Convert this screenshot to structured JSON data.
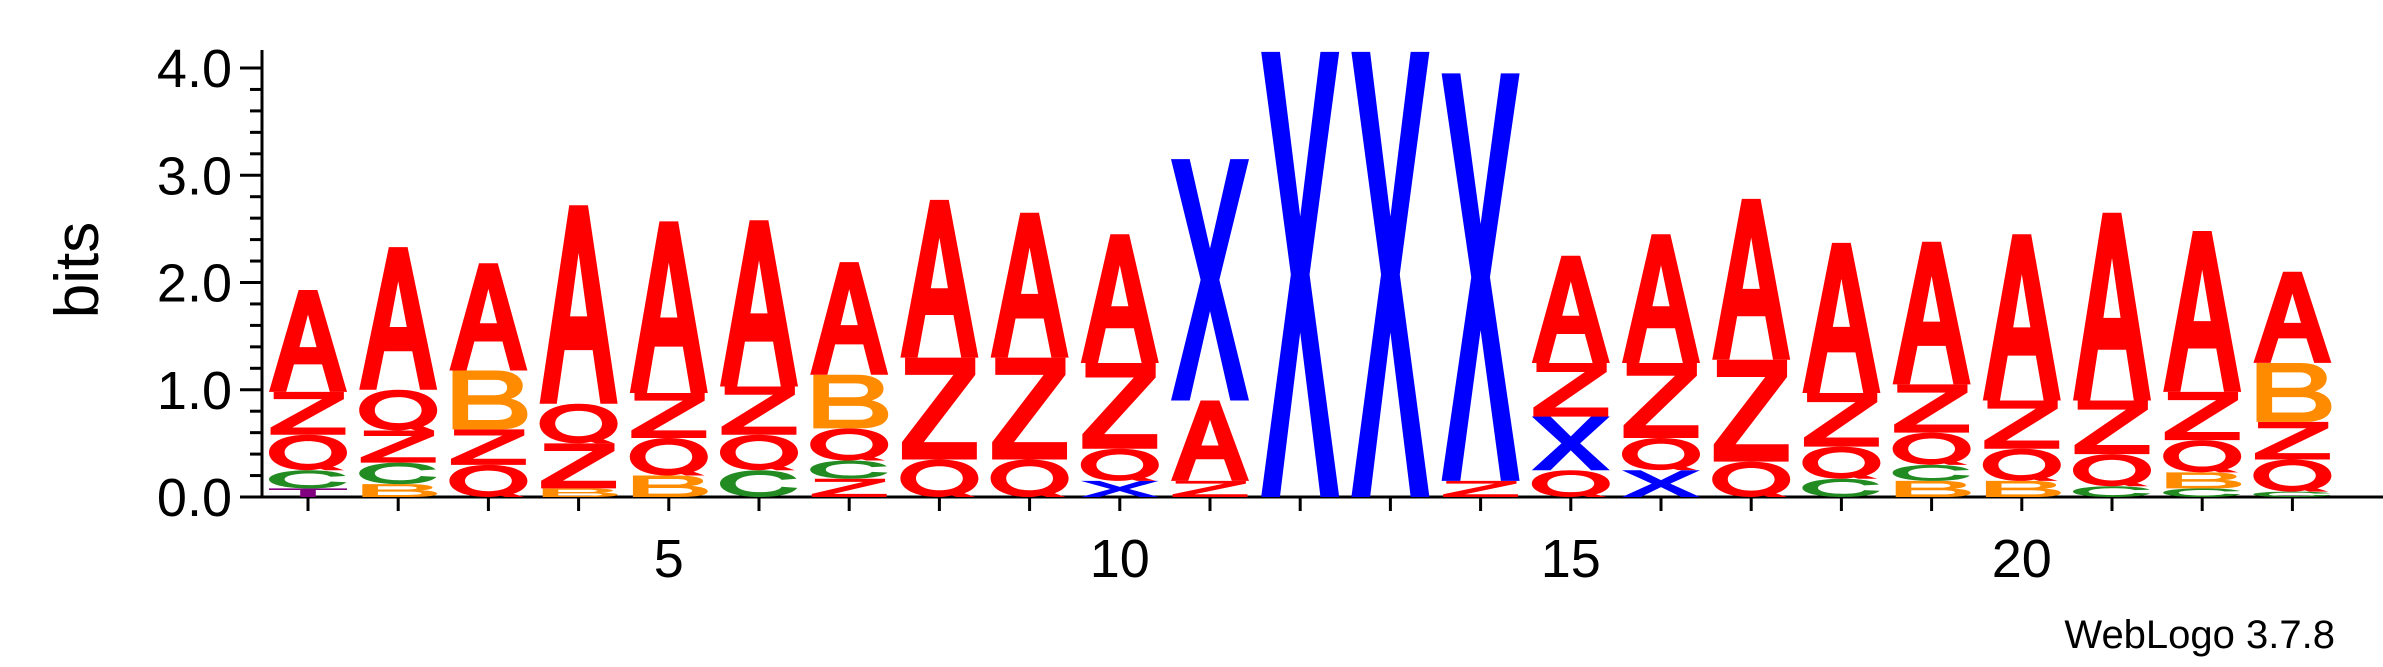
{
  "chart_data": {
    "type": "sequence-logo",
    "ylabel": "bits",
    "ylim": [
      0,
      4.0
    ],
    "yticks": [
      "0.0",
      "1.0",
      "2.0",
      "3.0",
      "4.0"
    ],
    "ytick_values": [
      0,
      1,
      2,
      3,
      4
    ],
    "xticks": [
      5,
      10,
      15,
      20
    ],
    "xlim": [
      0.5,
      24
    ],
    "colors": {
      "A": "#ff0000",
      "Z": "#ff0000",
      "Q": "#ff0000",
      "X": "#0000ff",
      "B": "#ff8c00",
      "C": "#228b22",
      "T": "#800080"
    },
    "positions": [
      {
        "pos": 1,
        "stack": [
          [
            "T",
            0.08
          ],
          [
            "C",
            0.17
          ],
          [
            "Q",
            0.33
          ],
          [
            "Z",
            0.4
          ],
          [
            "A",
            0.95
          ]
        ]
      },
      {
        "pos": 2,
        "stack": [
          [
            "B",
            0.12
          ],
          [
            "C",
            0.2
          ],
          [
            "Z",
            0.3
          ],
          [
            "Q",
            0.38
          ],
          [
            "A",
            1.33
          ]
        ]
      },
      {
        "pos": 3,
        "stack": [
          [
            "Q",
            0.3
          ],
          [
            "Z",
            0.33
          ],
          [
            "B",
            0.55
          ],
          [
            "A",
            1.0
          ]
        ]
      },
      {
        "pos": 4,
        "stack": [
          [
            "B",
            0.08
          ],
          [
            "Z",
            0.42
          ],
          [
            "Q",
            0.37
          ],
          [
            "A",
            1.85
          ]
        ]
      },
      {
        "pos": 5,
        "stack": [
          [
            "B",
            0.2
          ],
          [
            "Q",
            0.35
          ],
          [
            "Z",
            0.42
          ],
          [
            "A",
            1.6
          ]
        ]
      },
      {
        "pos": 6,
        "stack": [
          [
            "C",
            0.25
          ],
          [
            "Q",
            0.33
          ],
          [
            "Z",
            0.45
          ],
          [
            "A",
            1.55
          ]
        ]
      },
      {
        "pos": 7,
        "stack": [
          [
            "Z",
            0.17
          ],
          [
            "C",
            0.17
          ],
          [
            "Q",
            0.3
          ],
          [
            "B",
            0.5
          ],
          [
            "A",
            1.05
          ]
        ]
      },
      {
        "pos": 8,
        "stack": [
          [
            "Q",
            0.35
          ],
          [
            "Z",
            0.95
          ],
          [
            "A",
            1.47
          ]
        ]
      },
      {
        "pos": 9,
        "stack": [
          [
            "Q",
            0.35
          ],
          [
            "Z",
            0.95
          ],
          [
            "A",
            1.35
          ]
        ]
      },
      {
        "pos": 10,
        "stack": [
          [
            "X",
            0.15
          ],
          [
            "Q",
            0.3
          ],
          [
            "Z",
            0.8
          ],
          [
            "A",
            1.2
          ]
        ]
      },
      {
        "pos": 11,
        "stack": [
          [
            "Z",
            0.15
          ],
          [
            "A",
            0.75
          ],
          [
            "X",
            2.25
          ]
        ]
      },
      {
        "pos": 12,
        "stack": [
          [
            "X",
            4.15
          ]
        ]
      },
      {
        "pos": 13,
        "stack": [
          [
            "X",
            4.15
          ]
        ]
      },
      {
        "pos": 14,
        "stack": [
          [
            "Z",
            0.15
          ],
          [
            "X",
            3.8
          ]
        ]
      },
      {
        "pos": 15,
        "stack": [
          [
            "Q",
            0.25
          ],
          [
            "X",
            0.5
          ],
          [
            "Z",
            0.5
          ],
          [
            "A",
            1.0
          ]
        ]
      },
      {
        "pos": 16,
        "stack": [
          [
            "X",
            0.25
          ],
          [
            "Q",
            0.3
          ],
          [
            "Z",
            0.7
          ],
          [
            "A",
            1.2
          ]
        ]
      },
      {
        "pos": 17,
        "stack": [
          [
            "Q",
            0.33
          ],
          [
            "Z",
            0.95
          ],
          [
            "A",
            1.5
          ]
        ]
      },
      {
        "pos": 18,
        "stack": [
          [
            "C",
            0.17
          ],
          [
            "Q",
            0.3
          ],
          [
            "Z",
            0.5
          ],
          [
            "A",
            1.4
          ]
        ]
      },
      {
        "pos": 19,
        "stack": [
          [
            "B",
            0.15
          ],
          [
            "C",
            0.15
          ],
          [
            "Q",
            0.3
          ],
          [
            "Z",
            0.45
          ],
          [
            "A",
            1.33
          ]
        ]
      },
      {
        "pos": 20,
        "stack": [
          [
            "B",
            0.15
          ],
          [
            "Q",
            0.3
          ],
          [
            "Z",
            0.45
          ],
          [
            "A",
            1.55
          ]
        ]
      },
      {
        "pos": 21,
        "stack": [
          [
            "C",
            0.1
          ],
          [
            "Q",
            0.3
          ],
          [
            "Z",
            0.5
          ],
          [
            "A",
            1.75
          ]
        ]
      },
      {
        "pos": 22,
        "stack": [
          [
            "C",
            0.08
          ],
          [
            "B",
            0.15
          ],
          [
            "Q",
            0.3
          ],
          [
            "Z",
            0.45
          ],
          [
            "A",
            1.5
          ]
        ]
      },
      {
        "pos": 23,
        "stack": [
          [
            "C",
            0.05
          ],
          [
            "Q",
            0.3
          ],
          [
            "Z",
            0.35
          ],
          [
            "B",
            0.55
          ],
          [
            "A",
            0.85
          ]
        ]
      }
    ]
  },
  "credit": "WebLogo 3.7.8"
}
